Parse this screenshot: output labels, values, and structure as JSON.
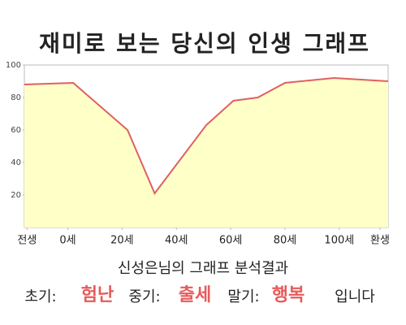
{
  "chart_data": {
    "type": "area",
    "title": "재미로 보는 당신의 인생 그래프",
    "x": [
      -16,
      2,
      22,
      32,
      51,
      61,
      70,
      80,
      98,
      118
    ],
    "values": [
      88,
      89,
      60,
      21,
      63,
      78,
      80,
      89,
      92,
      90
    ],
    "color": "#e06060",
    "fill": "#ffffc8",
    "xlim": [
      -16,
      118
    ],
    "xticks": [
      {
        "value": -15,
        "label": "전생"
      },
      {
        "value": 0,
        "label": "0세"
      },
      {
        "value": 20,
        "label": "20세"
      },
      {
        "value": 40,
        "label": "40세"
      },
      {
        "value": 60,
        "label": "60세"
      },
      {
        "value": 80,
        "label": "80세"
      },
      {
        "value": 100,
        "label": "100세"
      },
      {
        "value": 115,
        "label": "환생"
      }
    ],
    "ylim": [
      0,
      100
    ],
    "yticks": [
      20,
      40,
      60,
      80,
      100
    ]
  },
  "analysis": {
    "heading": "신성은님의 그래프 분석결과",
    "items": [
      {
        "label": "초기:",
        "value": "험난"
      },
      {
        "label": "중기:",
        "value": "출세"
      },
      {
        "label": "말기:",
        "value": "행복"
      }
    ],
    "ending": "입니다"
  }
}
